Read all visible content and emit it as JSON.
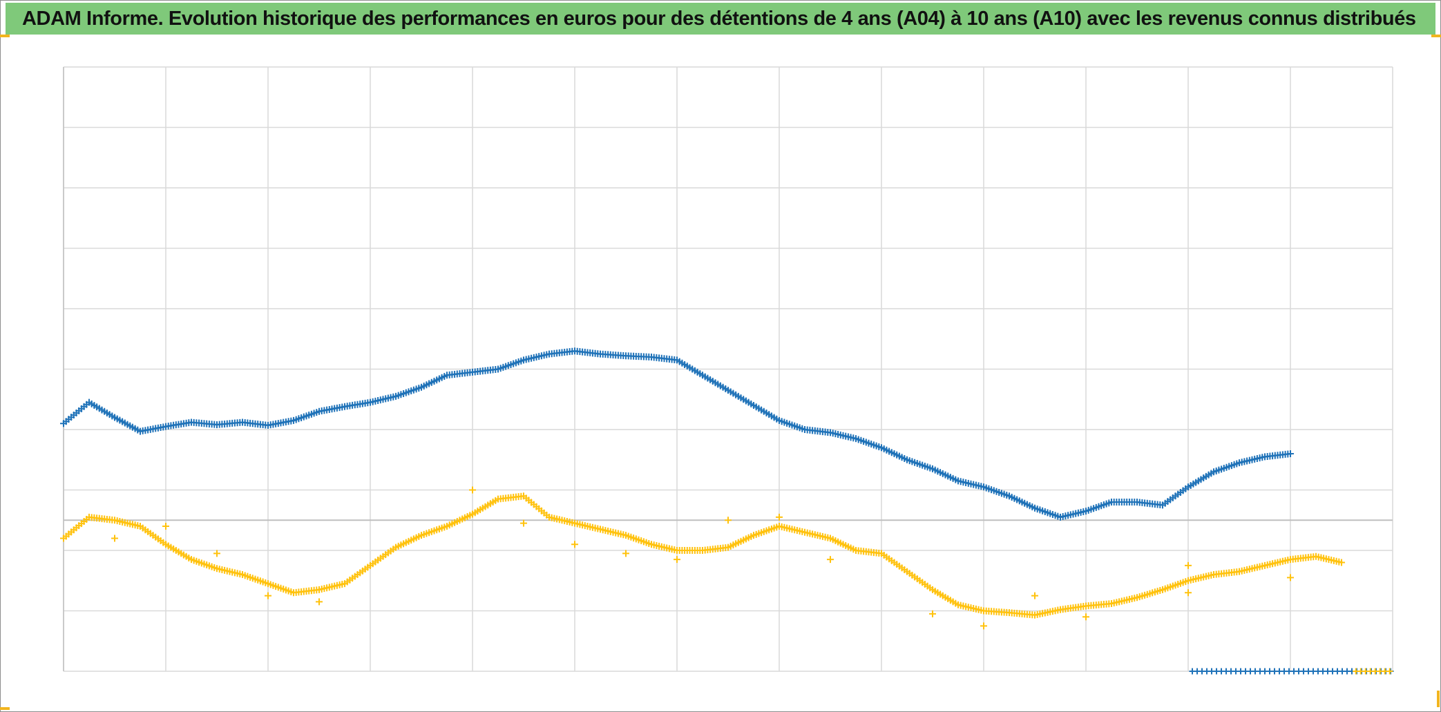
{
  "header": {
    "title": "ADAM Informe. Evolution historique des performances en euros pour des détentions de 4 ans (A04) à 10 ans (A10) avec les revenus connus distribués"
  },
  "colors": {
    "title_bar": "#7fc97a",
    "series_a": "#1f72b8",
    "series_b": "#ffc20e",
    "gridline": "#d9d9d9",
    "corner_marks": "#f2b51f"
  },
  "chart_data": {
    "type": "scatter",
    "title": "ADAM Informe. Evolution historique des performances en euros pour des détentions de 4 ans (A04) à 10 ans (A10) avec les revenus connus distribués",
    "xlabel": "",
    "ylabel": "",
    "tick_labels_shown": false,
    "legend_shown": false,
    "xlim": [
      0,
      13
    ],
    "ylim": [
      0,
      10
    ],
    "grid": true,
    "x_gridlines": 13,
    "y_gridlines": 10,
    "reference_line_y": 2.5,
    "marker": "plus",
    "series": [
      {
        "color": "#1f72b8",
        "values": [
          [
            0.0,
            4.1
          ],
          [
            0.25,
            4.45
          ],
          [
            0.5,
            4.2
          ],
          [
            0.75,
            3.97
          ],
          [
            1.0,
            4.05
          ],
          [
            1.25,
            4.12
          ],
          [
            1.5,
            4.08
          ],
          [
            1.75,
            4.12
          ],
          [
            2.0,
            4.07
          ],
          [
            2.25,
            4.15
          ],
          [
            2.5,
            4.3
          ],
          [
            2.75,
            4.38
          ],
          [
            3.0,
            4.45
          ],
          [
            3.25,
            4.55
          ],
          [
            3.5,
            4.7
          ],
          [
            3.75,
            4.9
          ],
          [
            4.0,
            4.95
          ],
          [
            4.25,
            5.0
          ],
          [
            4.5,
            5.15
          ],
          [
            4.75,
            5.25
          ],
          [
            5.0,
            5.3
          ],
          [
            5.25,
            5.25
          ],
          [
            5.5,
            5.22
          ],
          [
            5.75,
            5.2
          ],
          [
            6.0,
            5.15
          ],
          [
            6.25,
            4.9
          ],
          [
            6.5,
            4.65
          ],
          [
            6.75,
            4.4
          ],
          [
            7.0,
            4.15
          ],
          [
            7.25,
            4.0
          ],
          [
            7.5,
            3.95
          ],
          [
            7.75,
            3.85
          ],
          [
            8.0,
            3.7
          ],
          [
            8.25,
            3.5
          ],
          [
            8.5,
            3.35
          ],
          [
            8.75,
            3.15
          ],
          [
            9.0,
            3.05
          ],
          [
            9.25,
            2.9
          ],
          [
            9.5,
            2.7
          ],
          [
            9.75,
            2.55
          ],
          [
            10.0,
            2.65
          ],
          [
            10.25,
            2.8
          ],
          [
            10.5,
            2.8
          ],
          [
            10.75,
            2.75
          ],
          [
            11.0,
            3.05
          ],
          [
            11.25,
            3.3
          ],
          [
            11.5,
            3.45
          ],
          [
            11.75,
            3.55
          ],
          [
            12.0,
            3.6
          ]
        ]
      },
      {
        "color": "#ffc20e",
        "values": [
          [
            0.0,
            2.2
          ],
          [
            0.25,
            2.55
          ],
          [
            0.5,
            2.5
          ],
          [
            0.75,
            2.4
          ],
          [
            1.0,
            2.1
          ],
          [
            1.25,
            1.85
          ],
          [
            1.5,
            1.7
          ],
          [
            1.75,
            1.6
          ],
          [
            2.0,
            1.45
          ],
          [
            2.25,
            1.3
          ],
          [
            2.5,
            1.35
          ],
          [
            2.75,
            1.45
          ],
          [
            3.0,
            1.75
          ],
          [
            3.25,
            2.05
          ],
          [
            3.5,
            2.25
          ],
          [
            3.75,
            2.4
          ],
          [
            4.0,
            2.6
          ],
          [
            4.25,
            2.85
          ],
          [
            4.5,
            2.9
          ],
          [
            4.75,
            2.55
          ],
          [
            5.0,
            2.45
          ],
          [
            5.25,
            2.35
          ],
          [
            5.5,
            2.25
          ],
          [
            5.75,
            2.1
          ],
          [
            6.0,
            2.0
          ],
          [
            6.25,
            2.0
          ],
          [
            6.5,
            2.05
          ],
          [
            6.75,
            2.25
          ],
          [
            7.0,
            2.4
          ],
          [
            7.25,
            2.3
          ],
          [
            7.5,
            2.2
          ],
          [
            7.75,
            2.0
          ],
          [
            8.0,
            1.95
          ],
          [
            8.25,
            1.65
          ],
          [
            8.5,
            1.35
          ],
          [
            8.75,
            1.1
          ],
          [
            9.0,
            1.0
          ],
          [
            9.25,
            0.97
          ],
          [
            9.5,
            0.93
          ],
          [
            9.75,
            1.02
          ],
          [
            10.0,
            1.08
          ],
          [
            10.25,
            1.12
          ],
          [
            10.5,
            1.22
          ],
          [
            10.75,
            1.35
          ],
          [
            11.0,
            1.5
          ],
          [
            11.25,
            1.6
          ],
          [
            11.5,
            1.65
          ],
          [
            11.75,
            1.75
          ],
          [
            12.0,
            1.85
          ],
          [
            12.25,
            1.9
          ],
          [
            12.5,
            1.8
          ]
        ],
        "outliers": [
          [
            0.5,
            2.2
          ],
          [
            1.0,
            2.4
          ],
          [
            1.5,
            1.95
          ],
          [
            2.0,
            1.25
          ],
          [
            2.5,
            1.15
          ],
          [
            4.0,
            3.0
          ],
          [
            4.5,
            2.45
          ],
          [
            5.0,
            2.1
          ],
          [
            5.5,
            1.95
          ],
          [
            6.0,
            1.85
          ],
          [
            6.5,
            2.5
          ],
          [
            7.0,
            2.55
          ],
          [
            7.5,
            1.85
          ],
          [
            8.5,
            0.95
          ],
          [
            9.0,
            0.75
          ],
          [
            9.5,
            1.25
          ],
          [
            10.0,
            0.9
          ],
          [
            11.0,
            1.3
          ],
          [
            11.0,
            1.75
          ],
          [
            12.0,
            1.55
          ]
        ]
      }
    ],
    "baseline_markers": [
      {
        "color": "#1f72b8",
        "x_range": [
          11.0,
          13.0
        ],
        "y": 0.0
      },
      {
        "color": "#ffc20e",
        "x_range": [
          12.6,
          13.0
        ],
        "y": 0.0
      }
    ]
  }
}
